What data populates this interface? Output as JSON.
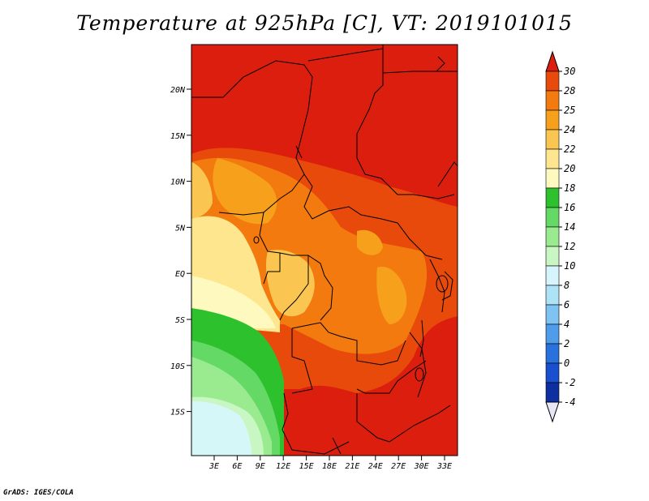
{
  "title": "Temperature at 925hPa [C], VT: 2019101015",
  "credit": "GrADS: IGES/COLA",
  "map": {
    "lat_labels": [
      "20N",
      "15N",
      "10N",
      "5N",
      "EQ",
      "5S",
      "10S",
      "15S"
    ],
    "lon_labels": [
      "3E",
      "6E",
      "9E",
      "12E",
      "15E",
      "18E",
      "21E",
      "24E",
      "27E",
      "30E",
      "33E"
    ]
  },
  "colorbar": {
    "labels": [
      "30",
      "28",
      "25",
      "24",
      "22",
      "20",
      "18",
      "16",
      "14",
      "12",
      "10",
      "8",
      "6",
      "4",
      "2",
      "0",
      "-2",
      "-4"
    ],
    "colors": [
      "#dc1e0f",
      "#e84a0b",
      "#f37a0f",
      "#f6a01c",
      "#fac651",
      "#fde68e",
      "#fefabf",
      "#2ec12e",
      "#64d965",
      "#9aea8f",
      "#c8f7c3",
      "#d5f4fb",
      "#aee2f7",
      "#7fc3f2",
      "#4f9ceb",
      "#2972de",
      "#1a4fcf",
      "#0e2f9f",
      "#0a1670"
    ]
  },
  "colors": {
    "hot": "#dc1e0f",
    "warm": "#f37a0f",
    "mild": "#fac651",
    "pale": "#fefabf",
    "green": "#2ec12e",
    "lightgreen": "#9aea8f",
    "cyan": "#d5f7f7"
  }
}
